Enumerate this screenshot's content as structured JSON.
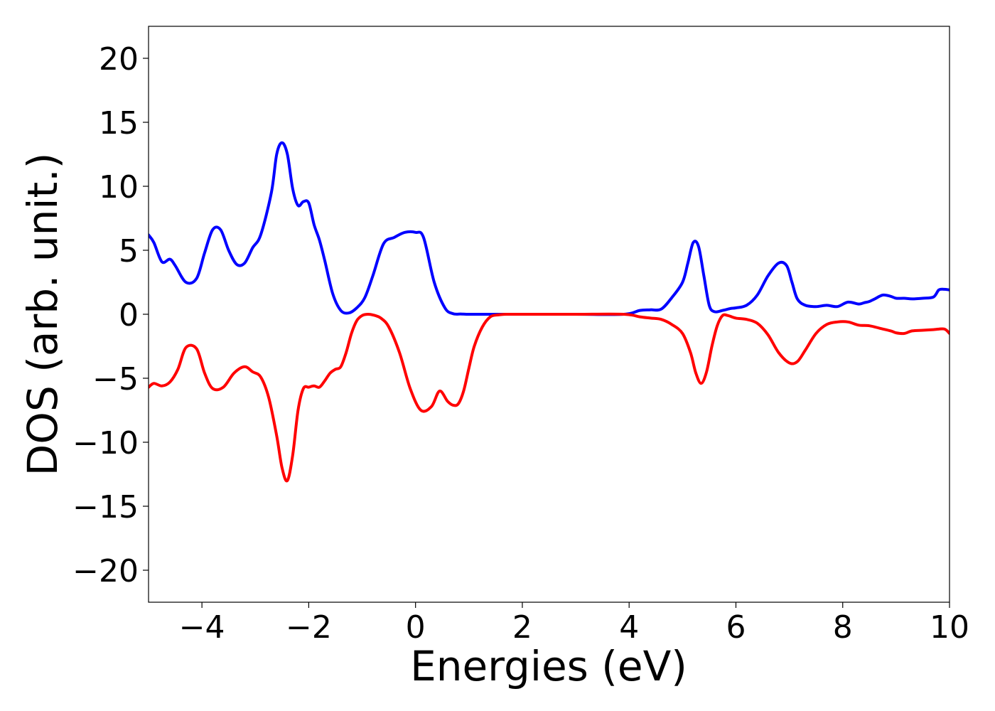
{
  "chart_data": {
    "type": "line",
    "title": "",
    "xlabel": "Energies (eV)",
    "ylabel": "DOS (arb. unit.)",
    "xlim": [
      -5,
      10
    ],
    "ylim": [
      -22.5,
      22.5
    ],
    "xticks": [
      -4,
      -2,
      0,
      2,
      4,
      6,
      8,
      10
    ],
    "xtick_labels": [
      "−4",
      "−2",
      "0",
      "2",
      "4",
      "6",
      "8",
      "10"
    ],
    "yticks": [
      -20,
      -15,
      -10,
      -5,
      0,
      5,
      10,
      15,
      20
    ],
    "ytick_labels": [
      "−20",
      "−15",
      "−10",
      "−5",
      "0",
      "5",
      "10",
      "15",
      "20"
    ],
    "grid": false,
    "legend": "none",
    "series": [
      {
        "color": "#0000ff",
        "x": [
          -5.0,
          -4.9,
          -4.75,
          -4.6,
          -4.5,
          -4.3,
          -4.1,
          -3.95,
          -3.8,
          -3.65,
          -3.5,
          -3.35,
          -3.2,
          -3.05,
          -2.9,
          -2.7,
          -2.6,
          -2.5,
          -2.4,
          -2.3,
          -2.2,
          -2.1,
          -2.0,
          -1.9,
          -1.8,
          -1.7,
          -1.55,
          -1.4,
          -1.25,
          -1.1,
          -0.95,
          -0.8,
          -0.6,
          -0.4,
          -0.2,
          0.0,
          0.15,
          0.35,
          0.55,
          0.7,
          0.85,
          0.95,
          1.05,
          1.15,
          1.3,
          1.6,
          2.0,
          3.0,
          3.9,
          4.2,
          4.4,
          4.6,
          4.8,
          5.0,
          5.1,
          5.2,
          5.3,
          5.4,
          5.5,
          5.6,
          5.75,
          5.9,
          6.0,
          6.2,
          6.4,
          6.6,
          6.8,
          6.95,
          7.05,
          7.15,
          7.3,
          7.5,
          7.7,
          7.9,
          8.1,
          8.3,
          8.4,
          8.5,
          8.6,
          8.75,
          8.9,
          9.0,
          9.15,
          9.3,
          9.5,
          9.7,
          9.8,
          9.9,
          10.0
        ],
        "values": [
          6.2,
          5.6,
          4.1,
          4.3,
          3.8,
          2.5,
          2.8,
          4.8,
          6.6,
          6.6,
          5.0,
          3.9,
          4.0,
          5.2,
          6.2,
          9.5,
          12.5,
          13.4,
          12.5,
          9.8,
          8.5,
          8.8,
          8.7,
          7.0,
          5.8,
          4.2,
          1.6,
          0.3,
          0.1,
          0.5,
          1.3,
          3.0,
          5.5,
          6.0,
          6.4,
          6.4,
          6.0,
          2.5,
          0.5,
          0.05,
          0.02,
          0.0,
          0.0,
          0.0,
          0.0,
          0.0,
          0.0,
          0.0,
          0.0,
          0.3,
          0.35,
          0.4,
          1.3,
          2.5,
          4.0,
          5.6,
          5.3,
          3.0,
          0.7,
          0.2,
          0.3,
          0.45,
          0.5,
          0.7,
          1.5,
          3.0,
          4.0,
          3.8,
          2.5,
          1.2,
          0.7,
          0.6,
          0.7,
          0.6,
          0.95,
          0.8,
          0.9,
          1.0,
          1.2,
          1.5,
          1.4,
          1.25,
          1.25,
          1.2,
          1.25,
          1.35,
          1.9,
          1.95,
          1.9
        ]
      },
      {
        "color": "#ff0000",
        "x": [
          -5.0,
          -4.9,
          -4.75,
          -4.6,
          -4.45,
          -4.3,
          -4.1,
          -3.95,
          -3.8,
          -3.6,
          -3.4,
          -3.2,
          -3.05,
          -2.9,
          -2.75,
          -2.6,
          -2.5,
          -2.4,
          -2.3,
          -2.2,
          -2.1,
          -2.0,
          -1.9,
          -1.8,
          -1.7,
          -1.6,
          -1.5,
          -1.4,
          -1.3,
          -1.2,
          -1.1,
          -1.0,
          -0.9,
          -0.8,
          -0.65,
          -0.5,
          -0.3,
          -0.1,
          0.1,
          0.3,
          0.45,
          0.6,
          0.7,
          0.8,
          0.9,
          1.0,
          1.1,
          1.25,
          1.4,
          1.55,
          1.7,
          1.9,
          2.2,
          3.0,
          3.9,
          4.2,
          4.4,
          4.6,
          4.8,
          5.0,
          5.15,
          5.25,
          5.35,
          5.45,
          5.55,
          5.65,
          5.75,
          5.85,
          6.0,
          6.2,
          6.4,
          6.6,
          6.8,
          7.0,
          7.15,
          7.3,
          7.5,
          7.7,
          7.9,
          8.1,
          8.3,
          8.5,
          8.7,
          8.9,
          9.0,
          9.15,
          9.3,
          9.5,
          9.7,
          9.9,
          10.0
        ],
        "values": [
          -5.7,
          -5.4,
          -5.6,
          -5.3,
          -4.3,
          -2.6,
          -2.7,
          -4.6,
          -5.8,
          -5.7,
          -4.6,
          -4.1,
          -4.5,
          -4.9,
          -6.5,
          -9.5,
          -12.0,
          -13.0,
          -11.0,
          -7.5,
          -5.8,
          -5.7,
          -5.6,
          -5.7,
          -5.2,
          -4.6,
          -4.3,
          -4.1,
          -3.0,
          -1.5,
          -0.5,
          -0.1,
          0.0,
          -0.05,
          -0.3,
          -1.0,
          -3.0,
          -5.8,
          -7.5,
          -7.2,
          -6.0,
          -6.8,
          -7.1,
          -7.0,
          -6.0,
          -4.2,
          -2.5,
          -1.0,
          -0.2,
          -0.05,
          0.0,
          0.0,
          0.0,
          0.0,
          0.0,
          -0.2,
          -0.3,
          -0.4,
          -0.8,
          -1.5,
          -3.0,
          -4.6,
          -5.4,
          -4.5,
          -2.5,
          -0.9,
          -0.1,
          -0.1,
          -0.3,
          -0.4,
          -0.7,
          -1.6,
          -3.0,
          -3.8,
          -3.7,
          -2.8,
          -1.5,
          -0.8,
          -0.6,
          -0.6,
          -0.85,
          -0.9,
          -1.1,
          -1.3,
          -1.45,
          -1.5,
          -1.3,
          -1.25,
          -1.2,
          -1.15,
          -1.5
        ]
      }
    ]
  }
}
